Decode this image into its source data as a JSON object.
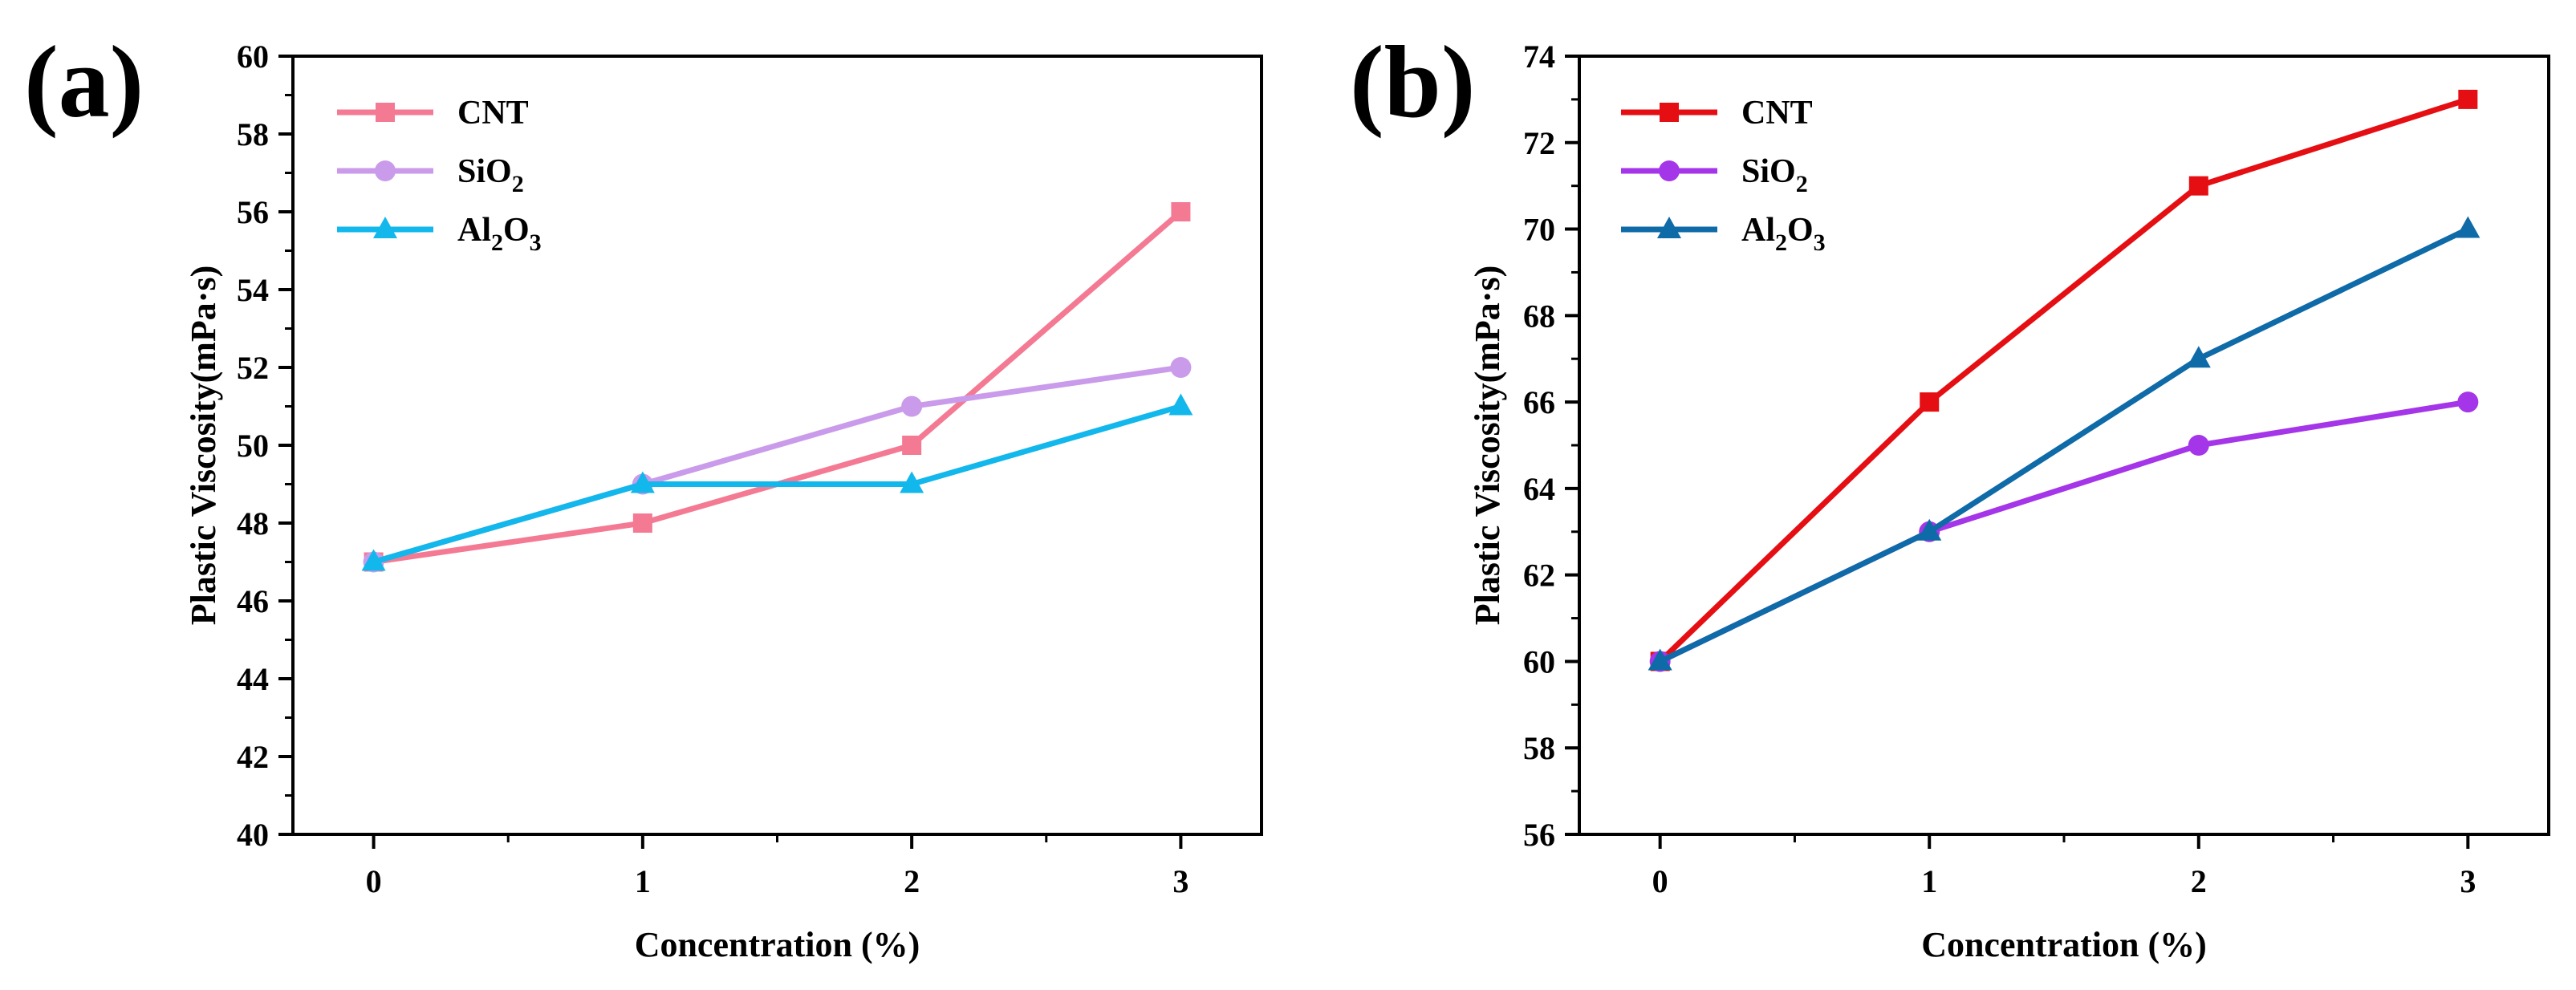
{
  "chart_data": [
    {
      "type": "line",
      "panel_label": "(a)",
      "xlabel": "Concentration (%)",
      "ylabel": "Plastic Viscosity(mPa·s)",
      "xlim": [
        -0.3,
        3.3
      ],
      "ylim": [
        40,
        60
      ],
      "x_ticks": [
        0,
        1,
        2,
        3
      ],
      "y_ticks": [
        40,
        42,
        44,
        46,
        48,
        50,
        52,
        54,
        56,
        58,
        60
      ],
      "legend_position": "top-left",
      "series": [
        {
          "name": "CNT",
          "label_main": "CNT",
          "label_parts": [
            {
              "t": "CNT",
              "sub": false
            }
          ],
          "color": "#F47A94",
          "marker": "square",
          "x": [
            0,
            1,
            2,
            3
          ],
          "values": [
            47,
            48,
            50,
            56
          ]
        },
        {
          "name": "SiO2",
          "label_main": "SiO",
          "label_parts": [
            {
              "t": "SiO",
              "sub": false
            },
            {
              "t": "2",
              "sub": true
            }
          ],
          "color": "#C99BEA",
          "marker": "circle",
          "x": [
            0,
            1,
            2,
            3
          ],
          "values": [
            47,
            49,
            51,
            52
          ]
        },
        {
          "name": "Al2O3",
          "label_main": "Al",
          "label_parts": [
            {
              "t": "Al",
              "sub": false
            },
            {
              "t": "2",
              "sub": true
            },
            {
              "t": "O",
              "sub": false
            },
            {
              "t": "3",
              "sub": true
            }
          ],
          "color": "#12B7EC",
          "marker": "triangle",
          "x": [
            0,
            1,
            2,
            3
          ],
          "values": [
            47,
            49,
            49,
            51
          ]
        }
      ]
    },
    {
      "type": "line",
      "panel_label": "(b)",
      "xlabel": "Concentration (%)",
      "ylabel": "Plastic Viscosity(mPa·s)",
      "xlim": [
        -0.3,
        3.3
      ],
      "ylim": [
        56,
        74
      ],
      "x_ticks": [
        0,
        1,
        2,
        3
      ],
      "y_ticks": [
        56,
        58,
        60,
        62,
        64,
        66,
        68,
        70,
        72,
        74
      ],
      "legend_position": "top-left",
      "series": [
        {
          "name": "CNT",
          "label_main": "CNT",
          "label_parts": [
            {
              "t": "CNT",
              "sub": false
            }
          ],
          "color": "#E50F13",
          "marker": "square",
          "x": [
            0,
            1,
            2,
            3
          ],
          "values": [
            60,
            66,
            71,
            73
          ]
        },
        {
          "name": "SiO2",
          "label_main": "SiO",
          "label_parts": [
            {
              "t": "SiO",
              "sub": false
            },
            {
              "t": "2",
              "sub": true
            }
          ],
          "color": "#A435E8",
          "marker": "circle",
          "x": [
            0,
            1,
            2,
            3
          ],
          "values": [
            60,
            63,
            65,
            66
          ]
        },
        {
          "name": "Al2O3",
          "label_main": "Al",
          "label_parts": [
            {
              "t": "Al",
              "sub": false
            },
            {
              "t": "2",
              "sub": true
            },
            {
              "t": "O",
              "sub": false
            },
            {
              "t": "3",
              "sub": true
            }
          ],
          "color": "#0F6AA8",
          "marker": "triangle",
          "x": [
            0,
            1,
            2,
            3
          ],
          "values": [
            60,
            63,
            67,
            70
          ]
        }
      ]
    }
  ]
}
